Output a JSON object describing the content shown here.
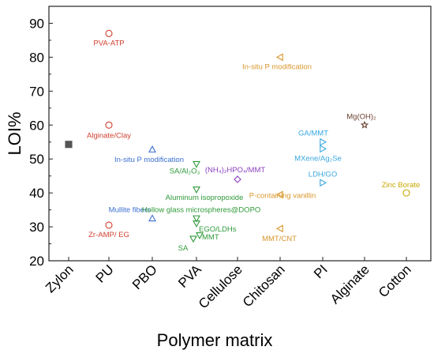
{
  "chart_data": {
    "type": "scatter",
    "title": "",
    "xlabel": "Polymer matrix",
    "ylabel": "LOI%",
    "ylim": [
      20,
      95
    ],
    "yticks": [
      20,
      30,
      40,
      50,
      60,
      70,
      80,
      90
    ],
    "categories": [
      "Zylon",
      "PU",
      "PBO",
      "PVA",
      "Cellulose",
      "Chitosan",
      "PI",
      "Alginate",
      "Cotton"
    ],
    "grid": false,
    "legend": "none",
    "colors": {
      "Zylon": "#555555",
      "PU": "#d04030",
      "PBO": "#3a6fd0",
      "PVA": "#2f9a3a",
      "Cellulose": "#8a3fbf",
      "Chitosan": "#d9962a",
      "PI": "#3aa8e0",
      "Alginate": "#6a4030",
      "Cotton": "#c8a800"
    },
    "points": [
      {
        "category": "Zylon",
        "y": 54.3,
        "marker": "square",
        "label": ""
      },
      {
        "category": "PU",
        "y": 87.0,
        "marker": "circle",
        "label": "PVA-ATP"
      },
      {
        "category": "PU",
        "y": 60.0,
        "marker": "circle",
        "label": "Alginate/Clay"
      },
      {
        "category": "PU",
        "y": 30.5,
        "marker": "circle",
        "label": "Zr-AMP/ EG"
      },
      {
        "category": "PBO",
        "y": 52.8,
        "marker": "triangle-up",
        "label": "In-situ P modification"
      },
      {
        "category": "PBO",
        "y": 32.5,
        "marker": "triangle-up",
        "label": "Mullite fibers"
      },
      {
        "category": "PVA",
        "y": 48.5,
        "marker": "triangle-down",
        "label": "SA/Al₂O₃"
      },
      {
        "category": "PVA",
        "y": 41.0,
        "marker": "triangle-down",
        "label": "Aluminum isopropoxide"
      },
      {
        "category": "PVA",
        "y": 32.5,
        "marker": "triangle-down",
        "label": "Hollow glass microspheres@DOPO"
      },
      {
        "category": "PVA",
        "y": 31.0,
        "marker": "triangle-down",
        "label": "EGO/LDHs"
      },
      {
        "category": "PVA",
        "y": 27.5,
        "marker": "triangle-down",
        "label": "MMT"
      },
      {
        "category": "PVA",
        "y": 26.5,
        "marker": "triangle-down",
        "label": "SA"
      },
      {
        "category": "Cellulose",
        "y": 44.0,
        "marker": "diamond",
        "label": "(NH₄)₂HPO₄/MMT"
      },
      {
        "category": "Chitosan",
        "y": 80.0,
        "marker": "triangle-left",
        "label": "In-situ P modification"
      },
      {
        "category": "Chitosan",
        "y": 39.5,
        "marker": "triangle-left",
        "label": "P-containing vanillin"
      },
      {
        "category": "Chitosan",
        "y": 29.5,
        "marker": "triangle-left",
        "label": "MMT/CNT"
      },
      {
        "category": "PI",
        "y": 55.0,
        "marker": "triangle-right",
        "label": "GA/MMT"
      },
      {
        "category": "PI",
        "y": 53.0,
        "marker": "triangle-right",
        "label": "MXene/Ag₂Se"
      },
      {
        "category": "PI",
        "y": 43.0,
        "marker": "triangle-right",
        "label": "LDH/GO"
      },
      {
        "category": "Alginate",
        "y": 60.0,
        "marker": "star",
        "label": "Mg(OH)₂"
      },
      {
        "category": "Cotton",
        "y": 40.0,
        "marker": "circle",
        "label": "Zinc Borate"
      }
    ]
  }
}
